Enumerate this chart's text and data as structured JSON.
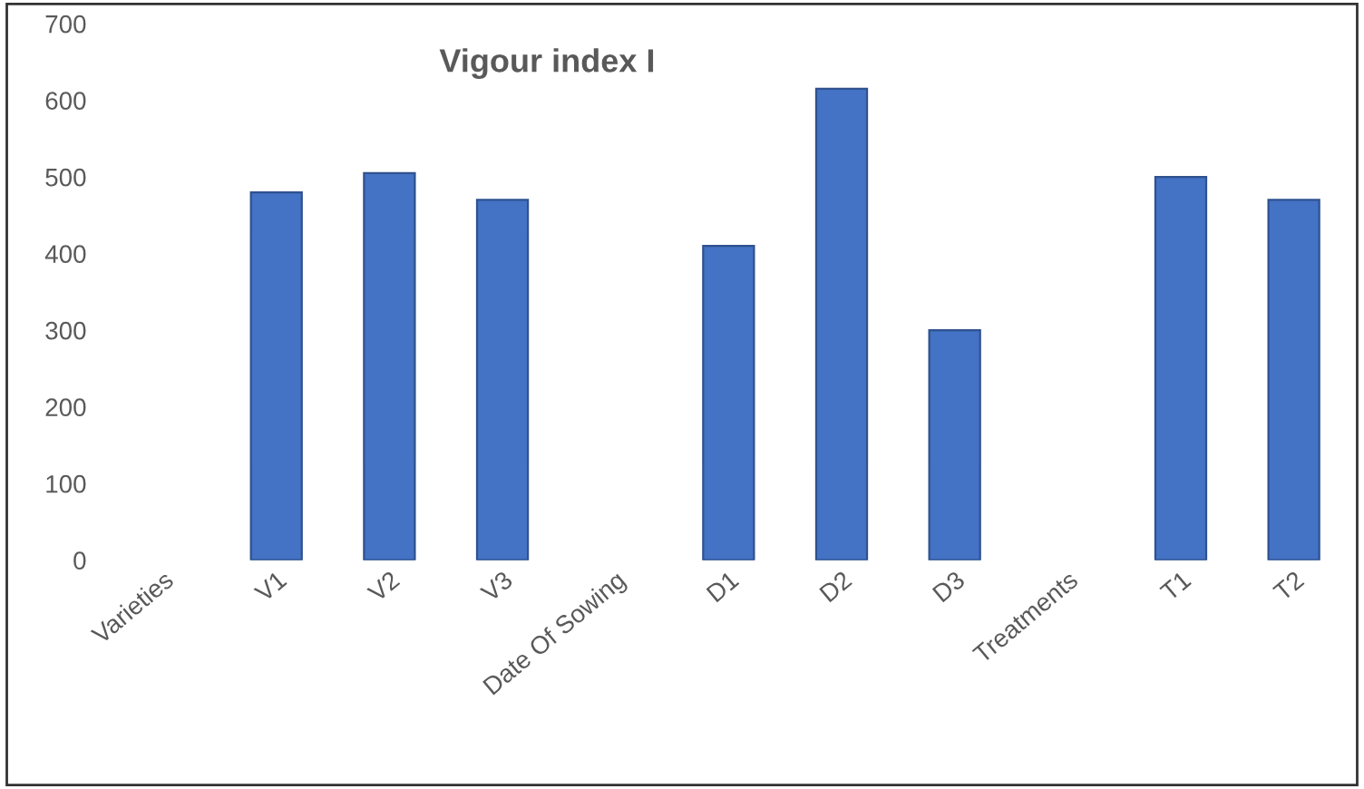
{
  "chart_data": {
    "type": "bar",
    "title": "Vigour index I",
    "categories": [
      "Varieties",
      "V1",
      "V2",
      "V3",
      "Date Of Sowing",
      "D1",
      "D2",
      "D3",
      "Treatments",
      "T1",
      "T2"
    ],
    "values": [
      null,
      480,
      505,
      470,
      null,
      410,
      615,
      300,
      null,
      500,
      470
    ],
    "color": "#4472c4",
    "ylim": [
      0,
      700
    ],
    "yticks": [
      0,
      100,
      200,
      300,
      400,
      500,
      600,
      700
    ],
    "grid": false
  }
}
